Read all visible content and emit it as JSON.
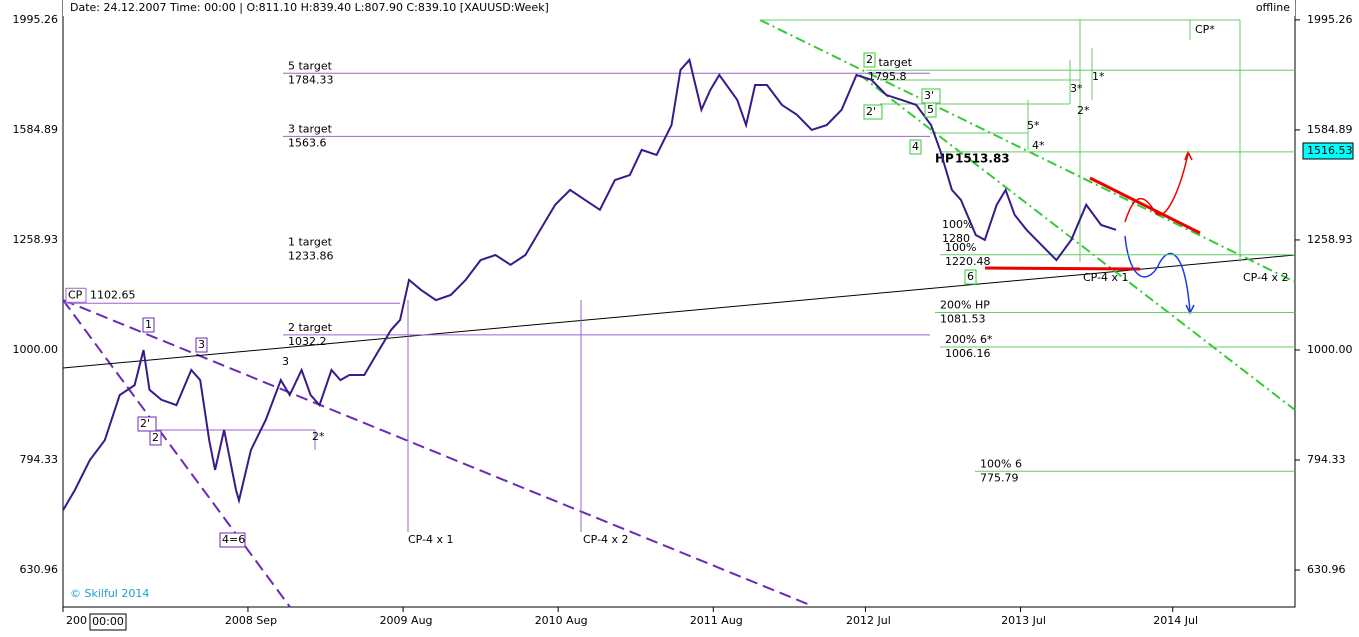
{
  "header": {
    "info": "Date: 24.12.2007  Time: 00:00  | O:811.10 H:839.40 L:807.90 C:839.10  [XAUUSD:Week]",
    "status": "offline"
  },
  "chart_data": {
    "type": "line",
    "log_scale": true,
    "color": "#3a1a8a",
    "x": [
      0,
      4,
      9,
      14,
      19,
      24,
      27,
      29,
      33,
      38,
      43,
      46,
      49,
      51,
      54,
      58,
      59,
      63,
      68,
      73,
      76,
      80,
      83,
      86,
      90,
      93,
      96,
      101,
      105,
      110,
      113,
      116,
      120,
      125,
      130,
      135,
      140,
      145,
      150,
      155,
      160,
      165,
      170,
      175,
      180,
      185,
      190,
      194,
      199,
      204,
      207,
      210,
      214,
      217,
      220,
      226,
      229,
      232,
      236,
      241,
      246,
      251,
      256,
      261,
      266,
      271,
      276,
      281,
      286,
      291,
      294,
      298,
      301,
      306,
      309,
      313,
      316,
      319,
      323,
      328,
      333,
      338,
      343,
      348,
      353
    ],
    "values": [
      715,
      746,
      794,
      828,
      910,
      929,
      1000,
      920,
      901,
      891,
      959,
      939,
      828,
      778,
      846,
      746,
      730,
      811,
      864,
      939,
      910,
      959,
      910,
      891,
      959,
      939,
      949,
      949,
      990,
      1043,
      1065,
      1158,
      1134,
      1110,
      1122,
      1158,
      1207,
      1220,
      1195,
      1220,
      1286,
      1355,
      1398,
      1369,
      1341,
      1427,
      1442,
      1520,
      1504,
      1601,
      1797,
      1835,
      1653,
      1723,
      1778,
      1688,
      1601,
      1741,
      1741,
      1670,
      1636,
      1585,
      1601,
      1653,
      1778,
      1760,
      1705,
      1688,
      1670,
      1601,
      1520,
      1398,
      1369,
      1272,
      1259,
      1355,
      1398,
      1327,
      1286,
      1246,
      1207,
      1259,
      1355,
      1299,
      1286
    ],
    "xlim": [
      0,
      413
    ],
    "xticks": [
      {
        "value": 0,
        "label": "200"
      },
      {
        "value": 62,
        "label": "2008 Sep"
      },
      {
        "value": 114,
        "label": "2009 Aug"
      },
      {
        "value": 166,
        "label": "2010 Aug"
      },
      {
        "value": 218,
        "label": "2011 Aug"
      },
      {
        "value": 269,
        "label": "2012 Jul"
      },
      {
        "value": 321,
        "label": "2013 Jul"
      },
      {
        "value": 372,
        "label": "2014 Jul"
      }
    ],
    "ylim": [
      584,
      2080
    ],
    "yticks": [
      630.96,
      794.33,
      {
        "value": 1000,
        "label": "1000.00"
      },
      1258.93,
      1584.89,
      1995.26
    ],
    "last_price": 1516.53,
    "crosshair_time": "00:00",
    "levels": [
      {
        "name": "5 target",
        "value": 1784.33,
        "color": "#9966cc"
      },
      {
        "name": "3 target",
        "value": 1563.6,
        "color": "#9966cc"
      },
      {
        "name": "1 target",
        "value": 1233.86,
        "color": "#9966cc"
      },
      {
        "name": "2 target",
        "value": 1032.2,
        "color": "#9966cc"
      },
      {
        "name": "CP",
        "value": 1102.65,
        "color": "#9966cc"
      },
      {
        "name": "2 target",
        "value": 1795.8,
        "color": "#66cc66"
      },
      {
        "name": "HP",
        "value": 1513.83,
        "color": "#66cc66"
      },
      {
        "name": "100%",
        "value": 1280,
        "color": "#66cc66"
      },
      {
        "name": "100%",
        "value": 1220.48,
        "color": "#66cc66"
      },
      {
        "name": "200% HP",
        "value": 1081.53,
        "color": "#66cc66"
      },
      {
        "name": "200% 6*",
        "value": 1006.16,
        "color": "#66cc66"
      },
      {
        "name": "100% 6",
        "value": 775.79,
        "color": "#66cc66"
      }
    ],
    "annotations": [
      "CP-4 x 1",
      "CP-4 x 2",
      "CP-4 x 1",
      "CP-4 x 2",
      "CP*"
    ],
    "wave_labels": [
      "1",
      "2'",
      "2",
      "3",
      "3",
      "2*",
      "4=6",
      "1*",
      "2*",
      "3*",
      "4*",
      "5*",
      "2",
      "2'",
      "3'",
      "5",
      "4",
      "6"
    ],
    "copyright": "© Skilful 2014"
  }
}
